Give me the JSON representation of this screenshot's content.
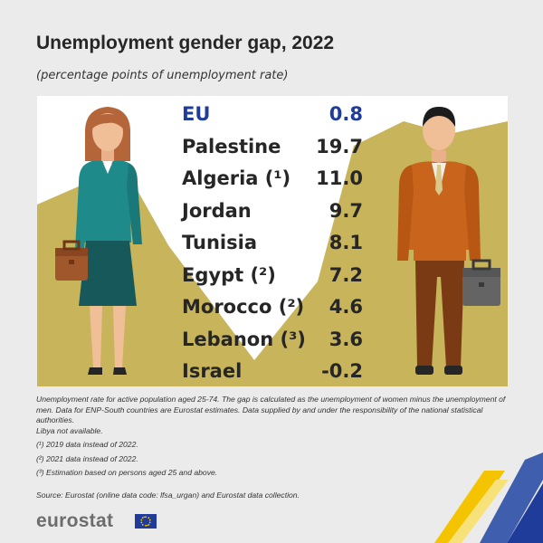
{
  "header": {
    "title": "Unemployment gender gap, 2022",
    "subtitle": "(percentage points of unemployment rate)"
  },
  "chart_data": {
    "type": "table",
    "title": "Unemployment gender gap, 2022",
    "subtitle": "(percentage points of unemployment rate)",
    "rows": [
      {
        "label": "EU",
        "value": "0.8",
        "highlight": true
      },
      {
        "label": "Palestine",
        "value": "19.7"
      },
      {
        "label": "Algeria (¹)",
        "value": "11.0"
      },
      {
        "label": "Jordan",
        "value": "9.7"
      },
      {
        "label": "Tunisia",
        "value": "8.1"
      },
      {
        "label": "Egypt (²)",
        "value": "7.2"
      },
      {
        "label": "Morocco (²)",
        "value": "4.6"
      },
      {
        "label": "Lebanon (³)",
        "value": "3.6"
      },
      {
        "label": "Israel",
        "value": "-0.2"
      }
    ],
    "colors": {
      "eu": "#1f3c9a",
      "text": "#262626",
      "background_band": "#c8b45a"
    }
  },
  "footnotes": {
    "note1": "Unemployment rate for active population aged 25-74. The gap is calculated as the unemployment of women minus the unemployment of men. Data for ENP-South countries are Eurostat estimates. Data supplied by and under the responsibility of the national statistical authorities.",
    "note2": "Libya not available.",
    "fn1": "(¹) 2019 data instead of 2022.",
    "fn2": "(²) 2021 data instead of 2022.",
    "fn3": "(³) Estimation based on persons aged 25 and above."
  },
  "source": "Source: Eurostat (online data code: lfsa_urgan) and Eurostat data collection.",
  "logo": {
    "text": "eurostat",
    "flag_icon": "eu-flag-icon"
  }
}
